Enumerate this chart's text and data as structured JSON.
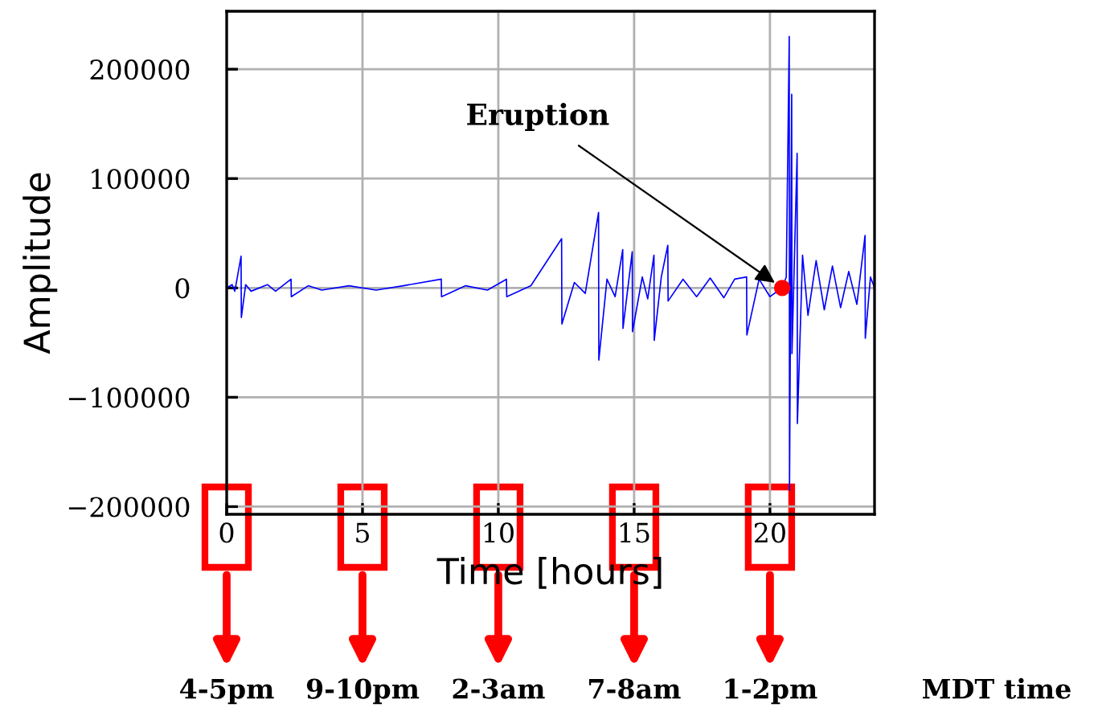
{
  "chart_data": {
    "type": "line",
    "xlabel": "Time [hours]",
    "ylabel": "Amplitude",
    "xlim": [
      0,
      23.85
    ],
    "ylim": [
      -207000,
      253000
    ],
    "xticks": [
      0,
      5,
      10,
      15,
      20
    ],
    "yticks": [
      {
        "value": -200000,
        "label": "−200000"
      },
      {
        "value": -100000,
        "label": "−100000"
      },
      0,
      100000,
      200000
    ],
    "grid": true,
    "legend": false,
    "series": [
      {
        "color": "#0000ff",
        "x": [
          0.0,
          0.2,
          0.3,
          0.53,
          0.54,
          0.7,
          0.9,
          1.5,
          1.8,
          2.37,
          2.38,
          3.0,
          3.5,
          4.5,
          5.5,
          6.5,
          7.9,
          7.91,
          8.8,
          9.6,
          10.3,
          10.31,
          11.2,
          12.33,
          12.34,
          12.8,
          13.2,
          13.69,
          13.7,
          14.0,
          14.3,
          14.58,
          14.59,
          14.93,
          14.94,
          15.3,
          15.5,
          15.73,
          15.74,
          16.0,
          16.24,
          16.25,
          16.8,
          17.3,
          17.8,
          18.3,
          18.7,
          19.14,
          19.15,
          19.6,
          20.0,
          20.45,
          20.6,
          20.71,
          20.72,
          20.8,
          20.81,
          21.0,
          21.01,
          21.2,
          21.4,
          21.7,
          22.0,
          22.3,
          22.6,
          22.9,
          23.2,
          23.5,
          23.51,
          23.7,
          23.85
        ],
        "values": [
          0,
          3000,
          -3000,
          29000,
          -27000,
          3000,
          -3000,
          3000,
          -3000,
          8000,
          -8000,
          2000,
          -2000,
          2000,
          -2000,
          2000,
          8000,
          -8000,
          2000,
          -2000,
          8000,
          -8000,
          2000,
          45000,
          -33000,
          5000,
          -5000,
          69000,
          -66000,
          8000,
          -8000,
          35000,
          -37000,
          33000,
          -40000,
          10000,
          -10000,
          30000,
          -48000,
          10000,
          39000,
          -12000,
          8000,
          -8000,
          9000,
          -9000,
          8000,
          10000,
          -43000,
          8000,
          -8000,
          0,
          10000,
          230000,
          -185000,
          177000,
          -60000,
          123000,
          -124000,
          30000,
          -25000,
          25000,
          -20000,
          20000,
          -18000,
          15000,
          -15000,
          48000,
          -46000,
          10000,
          0
        ]
      },
      {
        "type": "scatter",
        "color": "#ff0000",
        "marker": "circle",
        "x": [
          20.45
        ],
        "values": [
          0
        ]
      }
    ],
    "annotations": [
      {
        "text": "Eruption",
        "x": 20.45,
        "y": 0
      },
      "4-5pm",
      "9-10pm",
      "2-3am",
      "7-8am",
      "1-2pm",
      "MDT time"
    ]
  }
}
